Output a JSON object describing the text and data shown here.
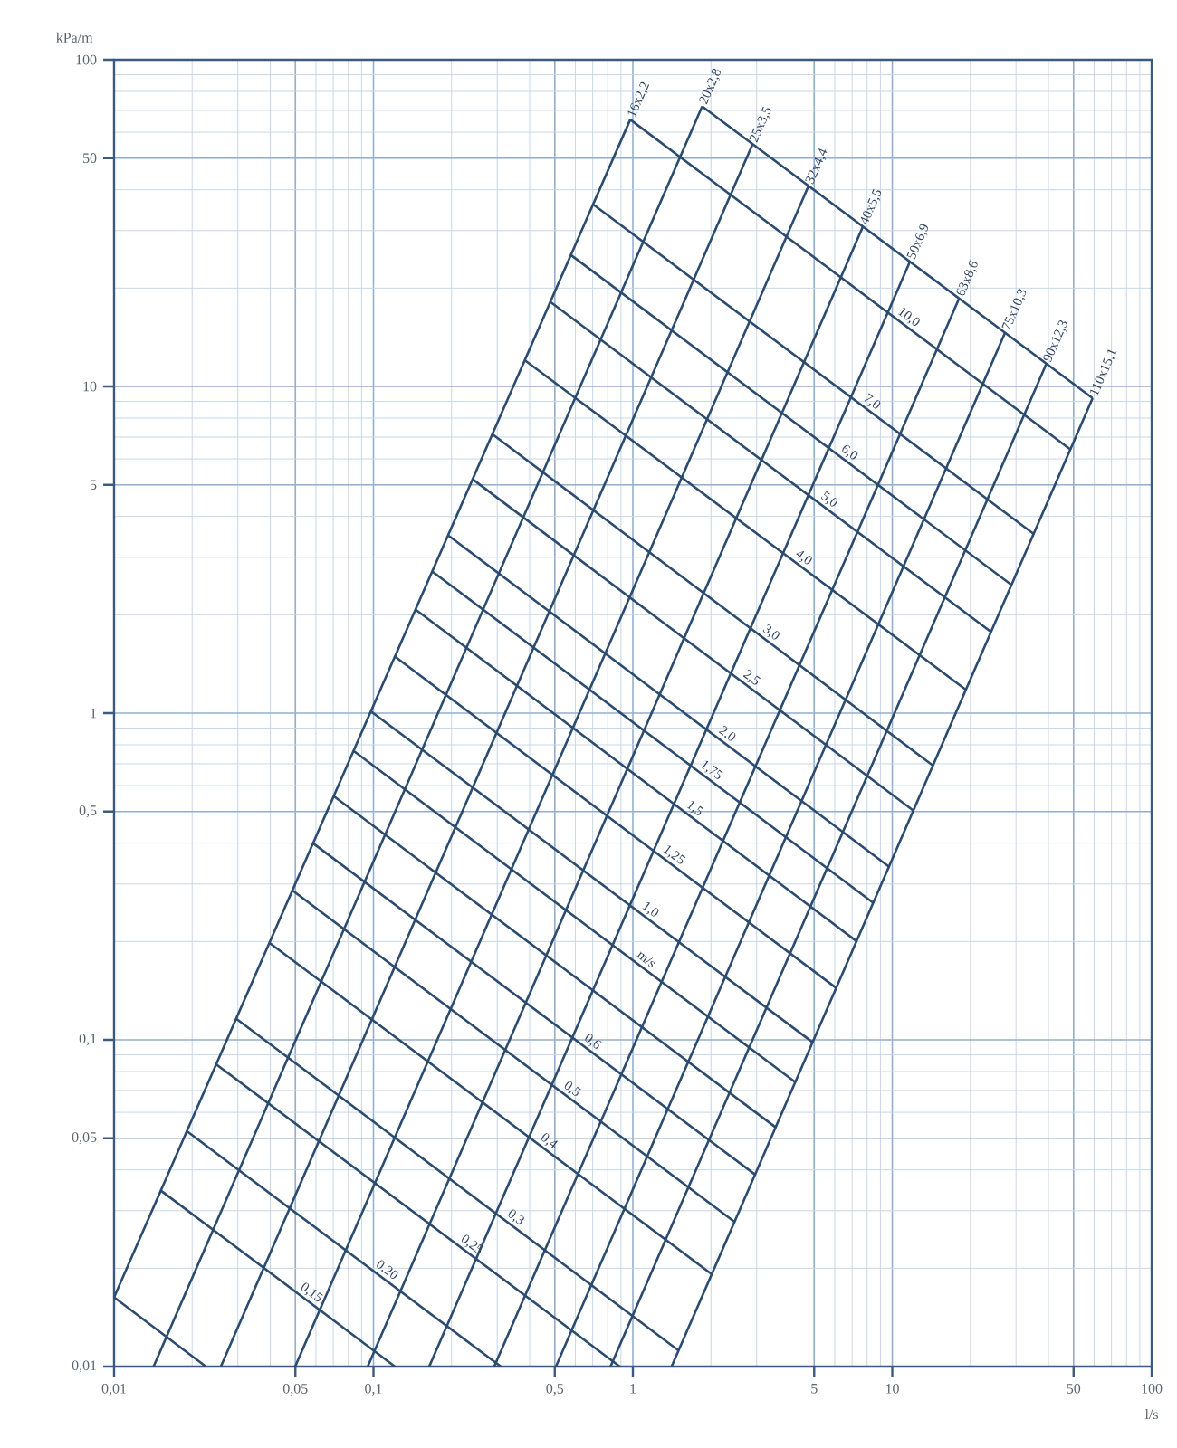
{
  "chart_data": {
    "type": "line",
    "xlabel": "l/s",
    "ylabel": "kPa/m",
    "log": "xy",
    "grid": true,
    "xlim": [
      0.01,
      100
    ],
    "ylim": [
      0.01,
      100
    ],
    "xticks": [
      {
        "value": 0.01,
        "label": "0,01"
      },
      {
        "value": 0.05,
        "label": "0,05"
      },
      {
        "value": 0.1,
        "label": "0,1"
      },
      {
        "value": 0.5,
        "label": "0,5"
      },
      1,
      5,
      10,
      50,
      100
    ],
    "yticks": [
      {
        "value": 0.01,
        "label": "0,01"
      },
      {
        "value": 0.05,
        "label": "0,05"
      },
      {
        "value": 0.1,
        "label": "0,1"
      },
      {
        "value": 0.5,
        "label": "0,5"
      },
      1,
      5,
      10,
      50,
      100
    ],
    "annotations": [
      {
        "text": "m/s",
        "x": 1.13,
        "y": 0.177
      }
    ],
    "series": [
      {
        "name": "16x2,2",
        "color": "#2b4b6f",
        "x": [
          0.01,
          0.977
        ],
        "values": [
          0.0163,
          65.6
        ]
      },
      {
        "name": "20x2,8",
        "color": "#2b4b6f",
        "x": [
          0.0142,
          1.85
        ],
        "values": [
          0.01,
          72
        ]
      },
      {
        "name": "25x3,5",
        "color": "#2b4b6f",
        "x": [
          0.0258,
          2.89
        ],
        "values": [
          0.01,
          55
        ]
      },
      {
        "name": "32x4,4",
        "color": "#2b4b6f",
        "x": [
          0.0499,
          4.75
        ],
        "values": [
          0.01,
          41
        ]
      },
      {
        "name": "40x5,5",
        "color": "#2b4b6f",
        "x": [
          0.095,
          7.7
        ],
        "values": [
          0.01,
          30.8
        ]
      },
      {
        "name": "50x6,9",
        "color": "#2b4b6f",
        "x": [
          0.164,
          11.7
        ],
        "values": [
          0.01,
          24.1
        ]
      },
      {
        "name": "63x8,6",
        "color": "#2b4b6f",
        "x": [
          0.292,
          18.1
        ],
        "values": [
          0.01,
          18.6
        ]
      },
      {
        "name": "75x10,3",
        "color": "#2b4b6f",
        "x": [
          0.505,
          27.2
        ],
        "values": [
          0.01,
          14.6
        ]
      },
      {
        "name": "90x12,3",
        "color": "#2b4b6f",
        "x": [
          0.82,
          39.2
        ],
        "values": [
          0.01,
          11.7
        ]
      },
      {
        "name": "110x15,1",
        "color": "#2b4b6f",
        "x": [
          1.41,
          59.2
        ],
        "values": [
          0.01,
          9.2
        ]
      },
      {
        "color": "#2b4b6f",
        "x": [
          0.01,
          0.0226
        ],
        "values": [
          0.0163,
          0.01
        ]
      },
      {
        "name": "0,15",
        "color": "#2b4b6f",
        "x": [
          0.0152,
          0.121
        ],
        "values": [
          0.0345,
          0.01
        ]
      },
      {
        "name": "0,20",
        "color": "#2b4b6f",
        "x": [
          0.0191,
          0.31
        ],
        "values": [
          0.0525,
          0.01
        ]
      },
      {
        "name": "0,25",
        "color": "#2b4b6f",
        "x": [
          0.0248,
          0.891
        ],
        "values": [
          0.0841,
          0.01
        ]
      },
      {
        "name": "0,3",
        "color": "#2b4b6f",
        "x": [
          0.0296,
          1.5
        ],
        "values": [
          0.116,
          0.0112
        ]
      },
      {
        "name": "0,4",
        "color": "#2b4b6f",
        "x": [
          0.0398,
          2.01
        ],
        "values": [
          0.198,
          0.0192
        ]
      },
      {
        "name": "0,5",
        "color": "#2b4b6f",
        "x": [
          0.0489,
          2.47
        ],
        "values": [
          0.286,
          0.0277
        ]
      },
      {
        "name": "0,6",
        "color": "#2b4b6f",
        "x": [
          0.0587,
          2.96
        ],
        "values": [
          0.399,
          0.0387
        ]
      },
      {
        "color": "#2b4b6f",
        "x": [
          0.0705,
          3.56
        ],
        "values": [
          0.556,
          0.0539
        ]
      },
      {
        "color": "#2b4b6f",
        "x": [
          0.0841,
          4.24
        ],
        "values": [
          0.765,
          0.0741
        ]
      },
      {
        "name": "1,0",
        "color": "#2b4b6f",
        "x": [
          0.0982,
          4.94
        ],
        "values": [
          1.01,
          0.0982
        ]
      },
      {
        "name": "1,25",
        "color": "#2b4b6f",
        "x": [
          0.121,
          6.09
        ],
        "values": [
          1.49,
          0.144
        ]
      },
      {
        "name": "1,5",
        "color": "#2b4b6f",
        "x": [
          0.146,
          7.31
        ],
        "values": [
          2.07,
          0.2
        ]
      },
      {
        "name": "1,75",
        "color": "#2b4b6f",
        "x": [
          0.169,
          8.48
        ],
        "values": [
          2.71,
          0.262
        ]
      },
      {
        "name": "2,0",
        "color": "#2b4b6f",
        "x": [
          0.195,
          9.75
        ],
        "values": [
          3.49,
          0.338
        ]
      },
      {
        "name": "2,5",
        "color": "#2b4b6f",
        "x": [
          0.242,
          12.1
        ],
        "values": [
          5.19,
          0.502
        ]
      },
      {
        "name": "3,0",
        "color": "#2b4b6f",
        "x": [
          0.288,
          14.4
        ],
        "values": [
          7.13,
          0.69
        ]
      },
      {
        "name": "4,0",
        "color": "#2b4b6f",
        "x": [
          0.385,
          19.2
        ],
        "values": [
          12.0,
          1.18
        ]
      },
      {
        "name": "5,0",
        "color": "#2b4b6f",
        "x": [
          0.483,
          24.1
        ],
        "values": [
          18.1,
          1.77
        ]
      },
      {
        "name": "6,0",
        "color": "#2b4b6f",
        "x": [
          0.579,
          28.8
        ],
        "values": [
          25.2,
          2.47
        ]
      },
      {
        "name": "7,0",
        "color": "#2b4b6f",
        "x": [
          0.706,
          35.2
        ],
        "values": [
          36.0,
          3.53
        ]
      },
      {
        "name": "10,0",
        "color": "#2b4b6f",
        "x": [
          0.977,
          48.8
        ],
        "values": [
          65.6,
          6.4
        ]
      },
      {
        "color": "#2b4b6f",
        "x": [
          1.85,
          59.2
        ],
        "values": [
          72,
          9.2
        ]
      }
    ]
  }
}
